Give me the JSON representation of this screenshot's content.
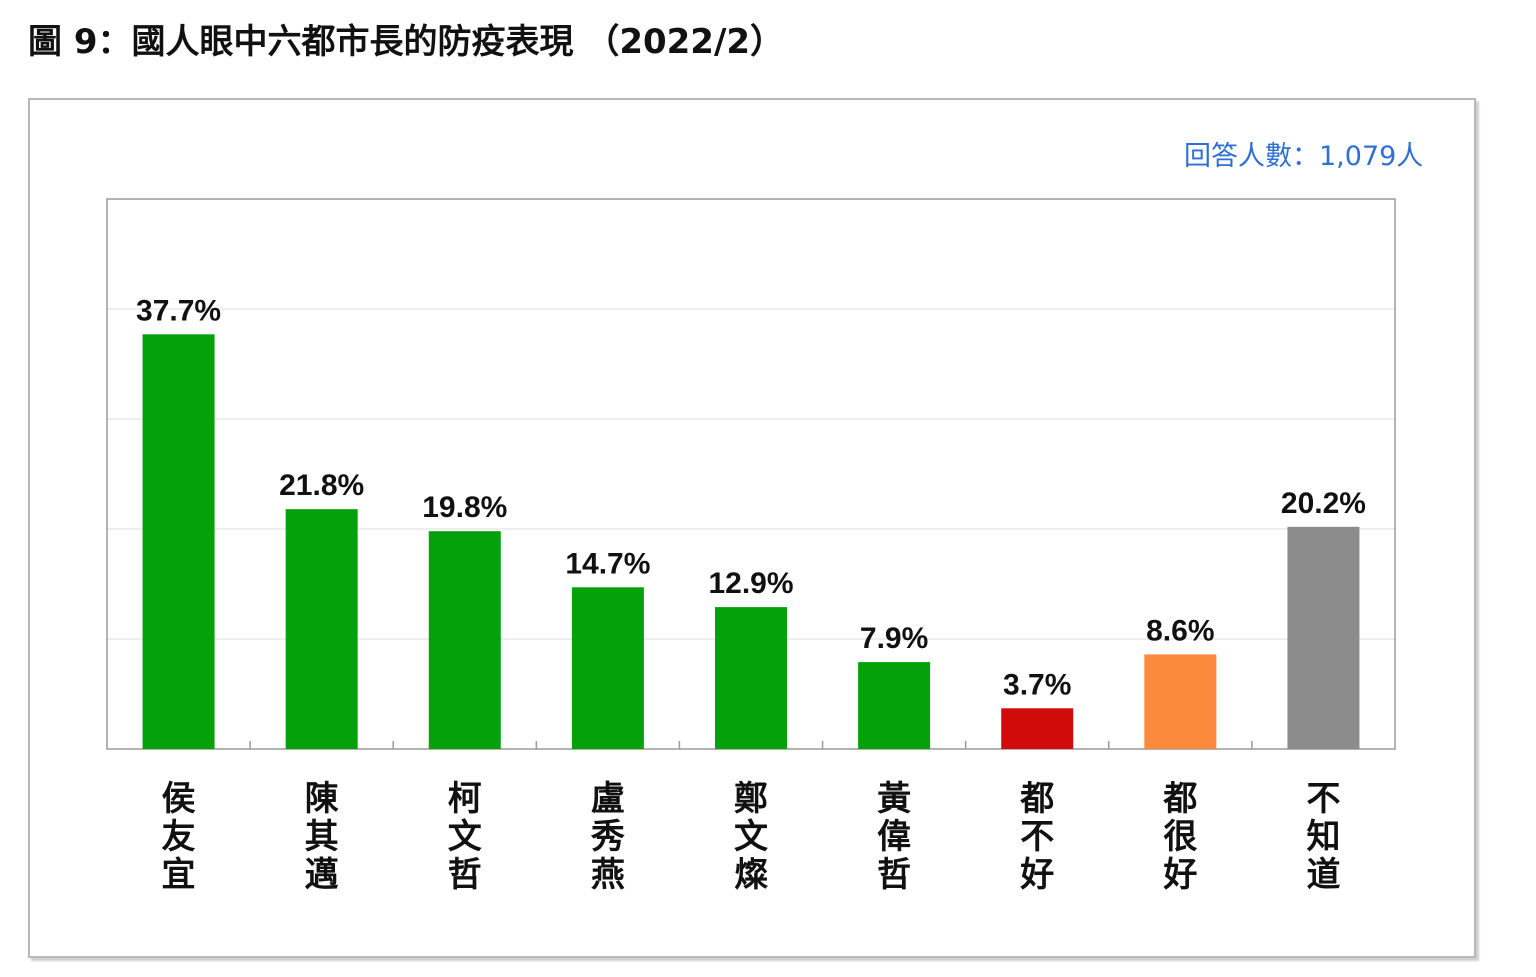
{
  "title": "圖 9：國人眼中六都市長的防疫表現 （2022/2）",
  "respondents": "回答人數：1,079人",
  "chart_data": {
    "type": "bar",
    "categories": [
      "侯友宜",
      "陳其邁",
      "柯文哲",
      "盧秀燕",
      "鄭文燦",
      "黃偉哲",
      "都不好",
      "都很好",
      "不知道"
    ],
    "values": [
      37.7,
      21.8,
      19.8,
      14.7,
      12.9,
      7.9,
      3.7,
      8.6,
      20.2
    ],
    "value_labels": [
      "37.7%",
      "21.8%",
      "19.8%",
      "14.7%",
      "12.9%",
      "7.9%",
      "3.7%",
      "8.6%",
      "20.2%"
    ],
    "colors": [
      "#05a10a",
      "#05a10a",
      "#05a10a",
      "#05a10a",
      "#05a10a",
      "#05a10a",
      "#d10a0a",
      "#fb8a3c",
      "#8c8c8c"
    ],
    "ylim": [
      0,
      50
    ],
    "gridlines": [
      10,
      20,
      30,
      40
    ],
    "grid": true,
    "legend": "none",
    "xlabel": "",
    "ylabel": ""
  }
}
